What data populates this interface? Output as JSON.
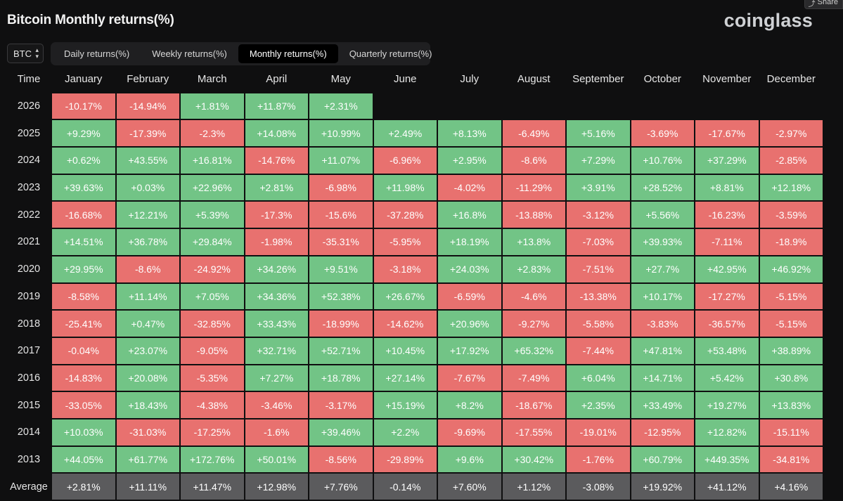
{
  "title": "Bitcoin Monthly returns(%)",
  "logo": "coinglass",
  "share_label": "Share",
  "symbol": "BTC",
  "tabs": [
    {
      "label": "Daily returns(%)",
      "active": false
    },
    {
      "label": "Weekly returns(%)",
      "active": false
    },
    {
      "label": "Monthly returns(%)",
      "active": true
    },
    {
      "label": "Quarterly returns(%)",
      "active": false
    }
  ],
  "colors": {
    "positive": "#72c486",
    "negative": "#e8716f",
    "average": "#5b5b5d",
    "background": "#0f0f10"
  },
  "table": {
    "headers": [
      "Time",
      "January",
      "February",
      "March",
      "April",
      "May",
      "June",
      "July",
      "August",
      "September",
      "October",
      "November",
      "December"
    ],
    "rows": [
      {
        "year": "2026",
        "values": [
          "-10.17%",
          "-14.94%",
          "+1.81%",
          "+11.87%",
          "+2.31%",
          "",
          "",
          "",
          "",
          "",
          "",
          ""
        ]
      },
      {
        "year": "2025",
        "values": [
          "+9.29%",
          "-17.39%",
          "-2.3%",
          "+14.08%",
          "+10.99%",
          "+2.49%",
          "+8.13%",
          "-6.49%",
          "+5.16%",
          "-3.69%",
          "-17.67%",
          "-2.97%"
        ]
      },
      {
        "year": "2024",
        "values": [
          "+0.62%",
          "+43.55%",
          "+16.81%",
          "-14.76%",
          "+11.07%",
          "-6.96%",
          "+2.95%",
          "-8.6%",
          "+7.29%",
          "+10.76%",
          "+37.29%",
          "-2.85%"
        ]
      },
      {
        "year": "2023",
        "values": [
          "+39.63%",
          "+0.03%",
          "+22.96%",
          "+2.81%",
          "-6.98%",
          "+11.98%",
          "-4.02%",
          "-11.29%",
          "+3.91%",
          "+28.52%",
          "+8.81%",
          "+12.18%"
        ]
      },
      {
        "year": "2022",
        "values": [
          "-16.68%",
          "+12.21%",
          "+5.39%",
          "-17.3%",
          "-15.6%",
          "-37.28%",
          "+16.8%",
          "-13.88%",
          "-3.12%",
          "+5.56%",
          "-16.23%",
          "-3.59%"
        ]
      },
      {
        "year": "2021",
        "values": [
          "+14.51%",
          "+36.78%",
          "+29.84%",
          "-1.98%",
          "-35.31%",
          "-5.95%",
          "+18.19%",
          "+13.8%",
          "-7.03%",
          "+39.93%",
          "-7.11%",
          "-18.9%"
        ]
      },
      {
        "year": "2020",
        "values": [
          "+29.95%",
          "-8.6%",
          "-24.92%",
          "+34.26%",
          "+9.51%",
          "-3.18%",
          "+24.03%",
          "+2.83%",
          "-7.51%",
          "+27.7%",
          "+42.95%",
          "+46.92%"
        ]
      },
      {
        "year": "2019",
        "values": [
          "-8.58%",
          "+11.14%",
          "+7.05%",
          "+34.36%",
          "+52.38%",
          "+26.67%",
          "-6.59%",
          "-4.6%",
          "-13.38%",
          "+10.17%",
          "-17.27%",
          "-5.15%"
        ]
      },
      {
        "year": "2018",
        "values": [
          "-25.41%",
          "+0.47%",
          "-32.85%",
          "+33.43%",
          "-18.99%",
          "-14.62%",
          "+20.96%",
          "-9.27%",
          "-5.58%",
          "-3.83%",
          "-36.57%",
          "-5.15%"
        ]
      },
      {
        "year": "2017",
        "values": [
          "-0.04%",
          "+23.07%",
          "-9.05%",
          "+32.71%",
          "+52.71%",
          "+10.45%",
          "+17.92%",
          "+65.32%",
          "-7.44%",
          "+47.81%",
          "+53.48%",
          "+38.89%"
        ]
      },
      {
        "year": "2016",
        "values": [
          "-14.83%",
          "+20.08%",
          "-5.35%",
          "+7.27%",
          "+18.78%",
          "+27.14%",
          "-7.67%",
          "-7.49%",
          "+6.04%",
          "+14.71%",
          "+5.42%",
          "+30.8%"
        ]
      },
      {
        "year": "2015",
        "values": [
          "-33.05%",
          "+18.43%",
          "-4.38%",
          "-3.46%",
          "-3.17%",
          "+15.19%",
          "+8.2%",
          "-18.67%",
          "+2.35%",
          "+33.49%",
          "+19.27%",
          "+13.83%"
        ]
      },
      {
        "year": "2014",
        "values": [
          "+10.03%",
          "-31.03%",
          "-17.25%",
          "-1.6%",
          "+39.46%",
          "+2.2%",
          "-9.69%",
          "-17.55%",
          "-19.01%",
          "-12.95%",
          "+12.82%",
          "-15.11%"
        ]
      },
      {
        "year": "2013",
        "values": [
          "+44.05%",
          "+61.77%",
          "+172.76%",
          "+50.01%",
          "-8.56%",
          "-29.89%",
          "+9.6%",
          "+30.42%",
          "-1.76%",
          "+60.79%",
          "+449.35%",
          "-34.81%"
        ]
      }
    ],
    "average": {
      "label": "Average",
      "values": [
        "+2.81%",
        "+11.11%",
        "+11.47%",
        "+12.98%",
        "+7.76%",
        "-0.14%",
        "+7.60%",
        "+1.12%",
        "-3.08%",
        "+19.92%",
        "+41.12%",
        "+4.16%"
      ]
    }
  }
}
